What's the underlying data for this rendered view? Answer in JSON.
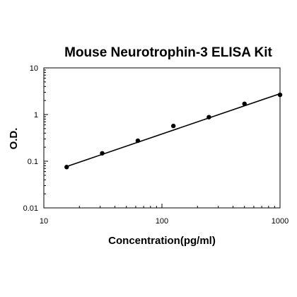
{
  "chart_data": {
    "type": "scatter",
    "title": "Mouse Neurotrophin-3  ELISA Kit",
    "xlabel": "Concentration(pg/ml)",
    "ylabel": "O.D.",
    "xscale": "log",
    "yscale": "log",
    "xlim": [
      10,
      1000
    ],
    "ylim": [
      0.01,
      10
    ],
    "x_ticks": [
      10,
      100,
      1000
    ],
    "x_tick_labels": [
      "10",
      "100",
      "1000"
    ],
    "y_ticks": [
      0.01,
      0.1,
      1,
      10
    ],
    "y_tick_labels": [
      "0.01",
      "0.1",
      "1",
      "10"
    ],
    "grid": false,
    "series": [
      {
        "points": [
          {
            "x": 15.6,
            "y": 0.075
          },
          {
            "x": 31.2,
            "y": 0.148
          },
          {
            "x": 62.5,
            "y": 0.275
          },
          {
            "x": 125,
            "y": 0.57
          },
          {
            "x": 250,
            "y": 0.88
          },
          {
            "x": 500,
            "y": 1.7
          },
          {
            "x": 1000,
            "y": 2.65
          }
        ]
      }
    ],
    "fit_line": {
      "x1": 15.6,
      "y1": 0.077,
      "x2": 1000,
      "y2": 2.8
    }
  }
}
